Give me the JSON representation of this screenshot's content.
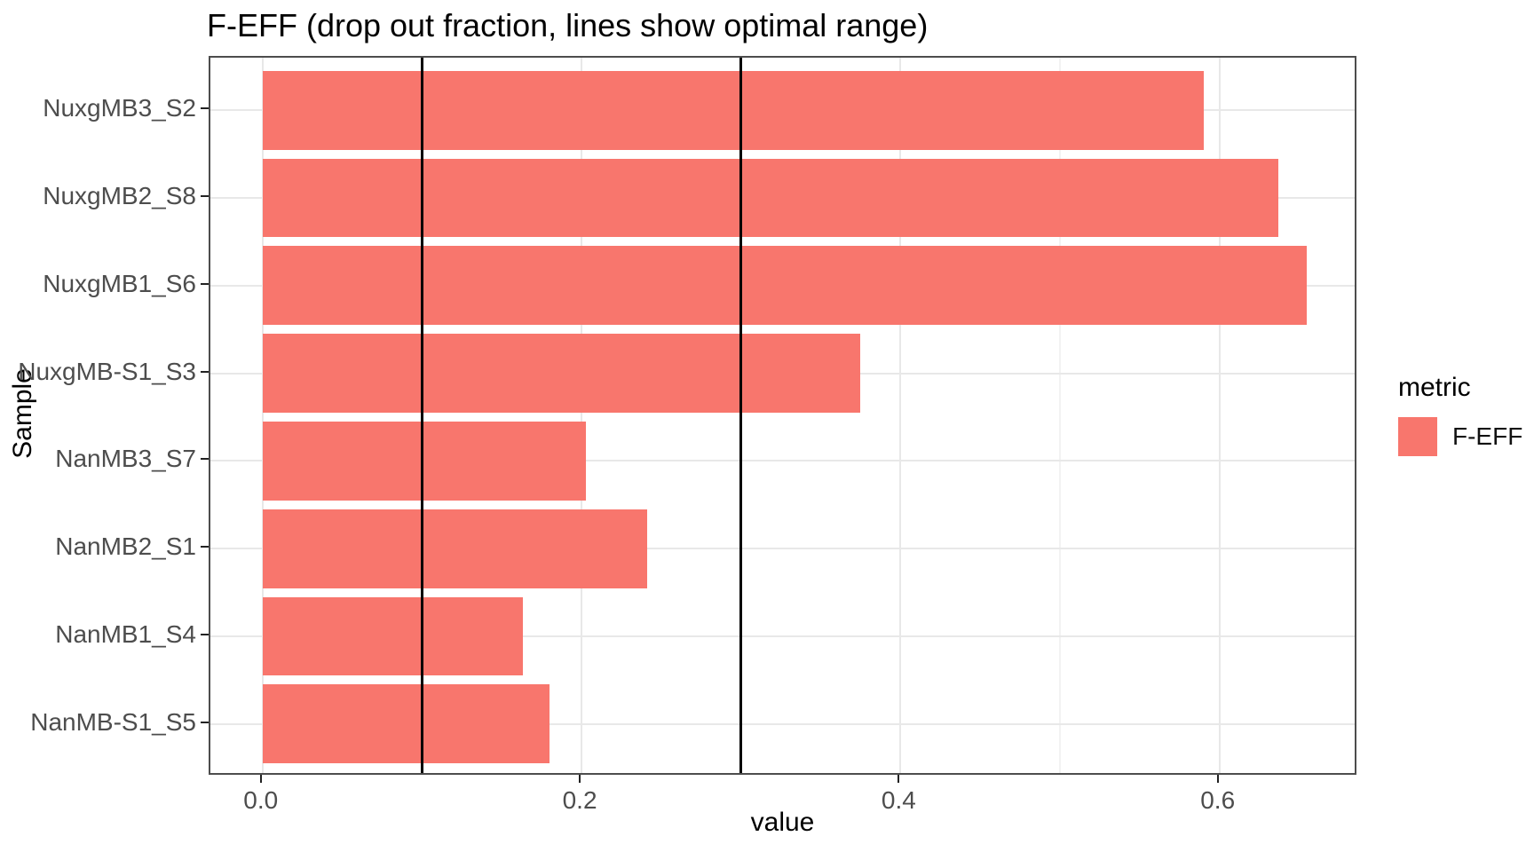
{
  "chart_data": {
    "type": "bar",
    "orientation": "horizontal",
    "title": "F-EFF (drop out fraction, lines show optimal range)",
    "xlabel": "value",
    "ylabel": "Sample",
    "categories": [
      "NuxgMB3_S2",
      "NuxgMB2_S8",
      "NuxgMB1_S6",
      "NuxgMB-S1_S3",
      "NanMB3_S7",
      "NanMB2_S1",
      "NanMB1_S4",
      "NanMB-S1_S5"
    ],
    "series": [
      {
        "name": "F-EFF",
        "values": [
          0.59,
          0.637,
          0.655,
          0.375,
          0.203,
          0.241,
          0.163,
          0.18
        ]
      }
    ],
    "bar_color": "#F8766D",
    "reference_lines": {
      "values": [
        0.1,
        0.3
      ],
      "color": "#000000",
      "meaning": "optimal range"
    },
    "xlim": [
      -0.0327,
      0.687
    ],
    "x_major_ticks": [
      0.0,
      0.2,
      0.4,
      0.6
    ],
    "x_tick_labels": [
      "0.0",
      "0.2",
      "0.4",
      "0.6"
    ],
    "x_minor_ticks": [
      0.1,
      0.3,
      0.5
    ],
    "grid": true,
    "legend": {
      "position": "right",
      "title": "metric",
      "entries": [
        {
          "label": "F-EFF",
          "color": "#F8766D"
        }
      ]
    }
  }
}
